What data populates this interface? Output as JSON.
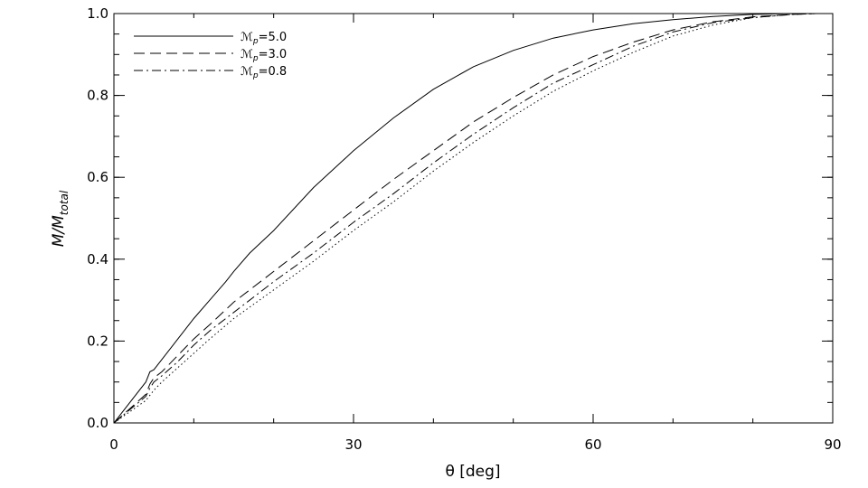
{
  "chart_data": {
    "type": "line",
    "title": "",
    "xlabel": "θ [deg]",
    "ylabel_main": "M/M",
    "ylabel_sub": "total",
    "xlim": [
      0,
      90
    ],
    "ylim": [
      0,
      1
    ],
    "x_major_ticks": [
      0,
      30,
      60,
      90
    ],
    "x_tick_labels": [
      "0",
      "30",
      "60",
      "90"
    ],
    "x_minor_step": 10,
    "y_major_ticks": [
      0,
      0.2,
      0.4,
      0.6,
      0.8,
      1.0
    ],
    "y_tick_labels": [
      "0.0",
      "0.2",
      "0.4",
      "0.6",
      "0.8",
      "1.0"
    ],
    "y_minor_step": 0.05,
    "grid": false,
    "legend_position": "top-left",
    "legend_symbol": "ℳ",
    "legend_sub": "p",
    "series": [
      {
        "name": "=5.0",
        "dash": "solid",
        "x": [
          0,
          4,
          4.5,
          5,
          6,
          8,
          10,
          12,
          14,
          15,
          17,
          20,
          25,
          30,
          35,
          40,
          45,
          50,
          55,
          60,
          65,
          70,
          75,
          80,
          85,
          88
        ],
        "y": [
          0,
          0.1,
          0.125,
          0.13,
          0.155,
          0.205,
          0.255,
          0.3,
          0.345,
          0.37,
          0.415,
          0.47,
          0.575,
          0.665,
          0.745,
          0.815,
          0.87,
          0.91,
          0.94,
          0.96,
          0.975,
          0.985,
          0.993,
          0.998,
          1.0,
          1.0
        ]
      },
      {
        "name": "=3.0",
        "dash": "dashed",
        "x": [
          0,
          4,
          4.5,
          5,
          6,
          8,
          10,
          12,
          15,
          20,
          25,
          30,
          35,
          40,
          45,
          50,
          55,
          60,
          65,
          70,
          75,
          80,
          85,
          88
        ],
        "y": [
          0,
          0.07,
          0.095,
          0.11,
          0.125,
          0.165,
          0.205,
          0.24,
          0.295,
          0.37,
          0.445,
          0.52,
          0.595,
          0.665,
          0.735,
          0.795,
          0.85,
          0.895,
          0.93,
          0.96,
          0.98,
          0.992,
          0.998,
          1.0
        ]
      },
      {
        "name": "=0.8",
        "dash": "dashdot",
        "x": [
          0,
          4,
          4.5,
          5,
          6,
          8,
          10,
          12,
          15,
          20,
          25,
          30,
          35,
          40,
          45,
          50,
          55,
          60,
          65,
          70,
          75,
          80,
          85,
          88
        ],
        "y": [
          0,
          0.065,
          0.085,
          0.1,
          0.115,
          0.15,
          0.19,
          0.225,
          0.27,
          0.345,
          0.415,
          0.49,
          0.56,
          0.635,
          0.705,
          0.77,
          0.83,
          0.875,
          0.92,
          0.955,
          0.978,
          0.99,
          0.998,
          1.0
        ]
      },
      {
        "name": "",
        "dash": "dotted",
        "x": [
          0,
          4,
          5,
          6,
          8,
          10,
          12,
          15,
          20,
          25,
          30,
          35,
          40,
          45,
          50,
          55,
          60,
          65,
          70,
          75,
          80,
          85,
          88
        ],
        "y": [
          0,
          0.055,
          0.08,
          0.1,
          0.135,
          0.17,
          0.205,
          0.255,
          0.325,
          0.395,
          0.47,
          0.54,
          0.615,
          0.685,
          0.75,
          0.81,
          0.86,
          0.905,
          0.945,
          0.972,
          0.99,
          0.998,
          1.0
        ]
      }
    ]
  }
}
